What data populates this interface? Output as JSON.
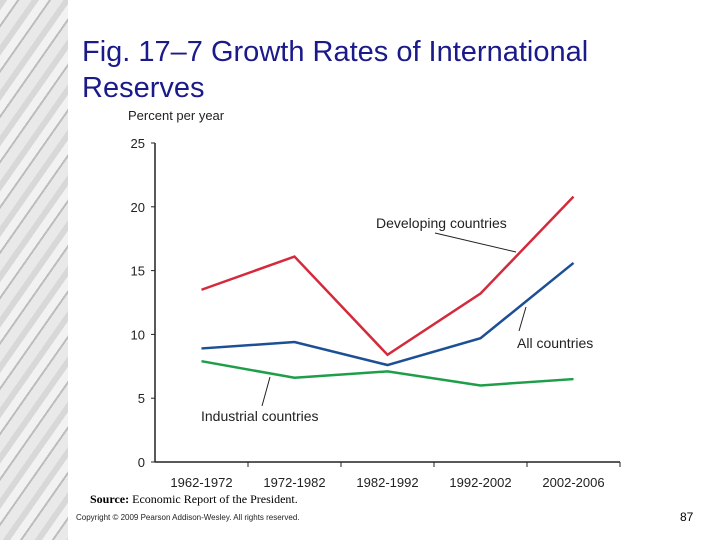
{
  "slide": {
    "title": "Fig. 17–7 Growth Rates of International Reserves",
    "source_label": "Source:",
    "source_text": "Economic Report of the President.",
    "copyright": "Copyright © 2009 Pearson Addison-Wesley. All rights reserved.",
    "page_number": "87"
  },
  "chart_data": {
    "type": "line",
    "ylabel": "Percent per year",
    "ylim": [
      0,
      25
    ],
    "yticks": [
      "0",
      "5",
      "10",
      "15",
      "20",
      "25"
    ],
    "categories": [
      "1962-1972",
      "1972-1982",
      "1982-1992",
      "1992-2002",
      "2002-2006"
    ],
    "series": [
      {
        "name": "Developing countries",
        "color": "#d42a3c",
        "values": [
          13.5,
          16.1,
          8.4,
          13.2,
          20.8
        ]
      },
      {
        "name": "All countries",
        "color": "#1c4f95",
        "values": [
          8.9,
          9.4,
          7.6,
          9.7,
          15.6
        ]
      },
      {
        "name": "Industrial countries",
        "color": "#1f9e4a",
        "values": [
          7.9,
          6.6,
          7.1,
          6.0,
          6.5
        ]
      }
    ]
  }
}
